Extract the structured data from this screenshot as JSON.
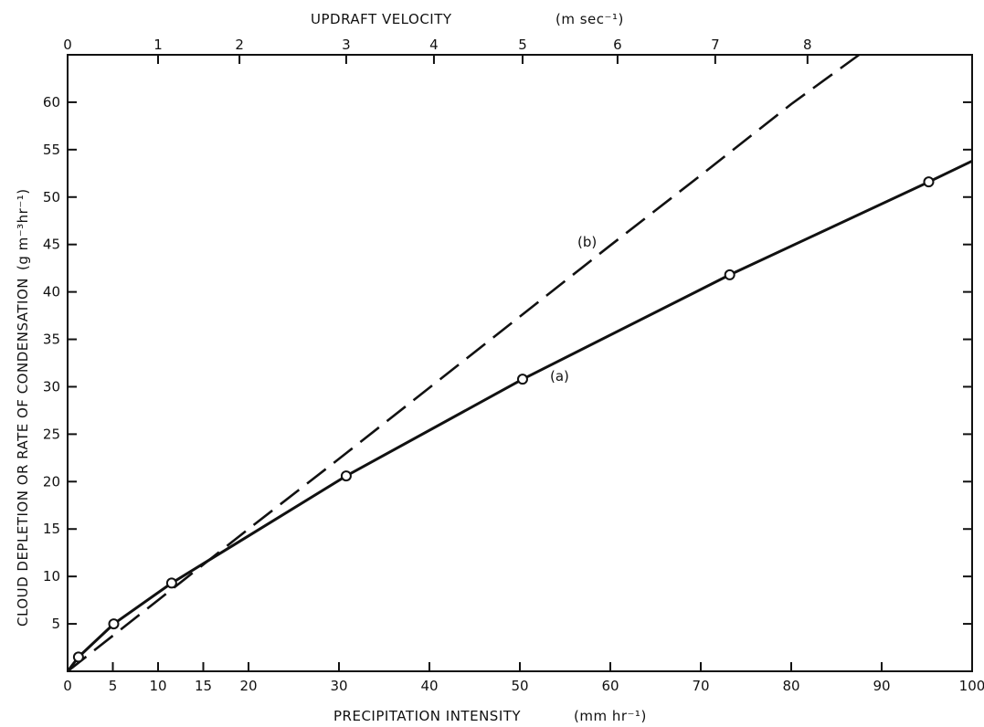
{
  "chart_data": {
    "type": "line",
    "title": "",
    "xlabel": "PRECIPITATION INTENSITY",
    "xlabel_unit": "(mm hr⁻¹)",
    "ylabel": "CLOUD DEPLETION OR RATE OF CONDENSATION",
    "ylabel_unit": "(g m⁻³hr⁻¹)",
    "top_axis_label": "UPDRAFT VELOCITY",
    "top_axis_unit": "(m sec⁻¹)",
    "xlim": [
      0,
      100
    ],
    "ylim": [
      0,
      65
    ],
    "x_ticks": [
      0,
      5,
      10,
      15,
      20,
      30,
      40,
      50,
      60,
      70,
      80,
      90,
      100
    ],
    "y_ticks": [
      5,
      10,
      15,
      20,
      25,
      30,
      35,
      40,
      45,
      50,
      55,
      60
    ],
    "top_ticks": [
      {
        "label": "0",
        "x": 0
      },
      {
        "label": "1",
        "x": 10
      },
      {
        "label": "2",
        "x": 19
      },
      {
        "label": "3",
        "x": 30.8
      },
      {
        "label": "4",
        "x": 40.5
      },
      {
        "label": "5",
        "x": 50.3
      },
      {
        "label": "6",
        "x": 60.8
      },
      {
        "label": "7",
        "x": 71.6
      },
      {
        "label": "8",
        "x": 81.8
      }
    ],
    "grid": false,
    "series": [
      {
        "name": "(a)",
        "style": "solid",
        "marker": "circle",
        "x": [
          0,
          1.2,
          5.1,
          11.5,
          30.8,
          50.3,
          73.2,
          95.2,
          100
        ],
        "y": [
          0,
          1.5,
          5.0,
          9.3,
          20.6,
          30.8,
          41.8,
          51.6,
          53.8
        ],
        "marker_indices": [
          1,
          2,
          3,
          4,
          5,
          6,
          7
        ]
      },
      {
        "name": "(b)",
        "style": "dashed",
        "x": [
          0,
          10,
          20,
          30,
          40,
          50,
          60,
          70,
          80,
          87.5
        ],
        "y": [
          0,
          7.5,
          15.0,
          22.4,
          29.9,
          37.4,
          44.9,
          52.3,
          59.8,
          65
        ]
      }
    ]
  }
}
